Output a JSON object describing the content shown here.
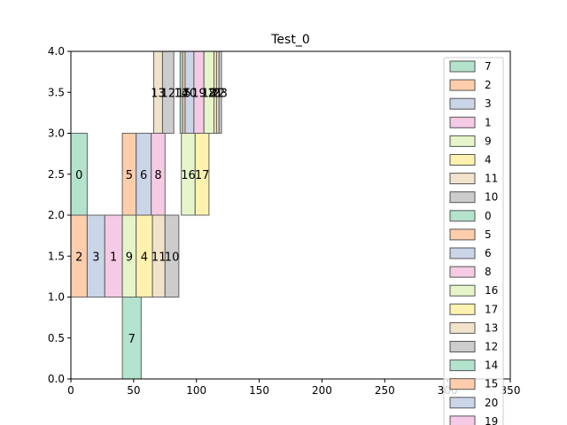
{
  "chart_data": {
    "type": "bar",
    "title": "Test_0",
    "xlabel": "",
    "ylabel": "",
    "xlim": [
      0,
      350
    ],
    "ylim": [
      0,
      4
    ],
    "xticks": [
      0,
      50,
      100,
      150,
      200,
      250,
      300,
      350
    ],
    "yticks": [
      0.0,
      0.5,
      1.0,
      1.5,
      2.0,
      2.5,
      3.0,
      3.5,
      4.0
    ],
    "xtick_labels": [
      "0",
      "50",
      "100",
      "150",
      "200",
      "250",
      "300",
      "350"
    ],
    "ytick_labels": [
      "0.0",
      "0.5",
      "1.0",
      "1.5",
      "2.0",
      "2.5",
      "3.0",
      "3.5",
      "4.0"
    ],
    "grid": false,
    "legend_position": "upper-right",
    "legend_entries": [
      "7",
      "2",
      "3",
      "1",
      "9",
      "4",
      "11",
      "10",
      "0",
      "5",
      "6",
      "8",
      "16",
      "17",
      "13",
      "12",
      "14",
      "15",
      "20",
      "19"
    ],
    "palette": [
      "#b3e2cd",
      "#fdcdac",
      "#cbd5e8",
      "#f4cae4",
      "#e6f5c9",
      "#fff2ae",
      "#f1e2cc",
      "#cccccc"
    ],
    "bars": [
      {
        "label": "7",
        "x0": 41,
        "width": 15,
        "y0": 0,
        "height": 1,
        "color": "#b3e2cd"
      },
      {
        "label": "2",
        "x0": 0,
        "width": 13,
        "y0": 1,
        "height": 1,
        "color": "#fdcdac"
      },
      {
        "label": "3",
        "x0": 13,
        "width": 14,
        "y0": 1,
        "height": 1,
        "color": "#cbd5e8"
      },
      {
        "label": "1",
        "x0": 27,
        "width": 14,
        "y0": 1,
        "height": 1,
        "color": "#f4cae4"
      },
      {
        "label": "9",
        "x0": 41,
        "width": 11,
        "y0": 1,
        "height": 1,
        "color": "#e6f5c9"
      },
      {
        "label": "4",
        "x0": 52,
        "width": 13,
        "y0": 1,
        "height": 1,
        "color": "#fff2ae"
      },
      {
        "label": "11",
        "x0": 65,
        "width": 10,
        "y0": 1,
        "height": 1,
        "color": "#f1e2cc"
      },
      {
        "label": "10",
        "x0": 75,
        "width": 11,
        "y0": 1,
        "height": 1,
        "color": "#cccccc"
      },
      {
        "label": "0",
        "x0": 0,
        "width": 13,
        "y0": 2,
        "height": 1,
        "color": "#b3e2cd"
      },
      {
        "label": "5",
        "x0": 41,
        "width": 11,
        "y0": 2,
        "height": 1,
        "color": "#fdcdac"
      },
      {
        "label": "6",
        "x0": 52,
        "width": 12,
        "y0": 2,
        "height": 1,
        "color": "#cbd5e8"
      },
      {
        "label": "8",
        "x0": 64,
        "width": 11,
        "y0": 2,
        "height": 1,
        "color": "#f4cae4"
      },
      {
        "label": "16",
        "x0": 88,
        "width": 11,
        "y0": 2,
        "height": 1,
        "color": "#e6f5c9"
      },
      {
        "label": "17",
        "x0": 99,
        "width": 11,
        "y0": 2,
        "height": 1,
        "color": "#fff2ae"
      },
      {
        "label": "13",
        "x0": 66,
        "width": 7,
        "y0": 3,
        "height": 1,
        "color": "#f1e2cc"
      },
      {
        "label": "12",
        "x0": 73,
        "width": 9,
        "y0": 3,
        "height": 1,
        "color": "#cccccc"
      },
      {
        "label": "14",
        "x0": 87,
        "width": 2,
        "y0": 3,
        "height": 1,
        "color": "#b3e2cd"
      },
      {
        "label": "15",
        "x0": 89,
        "width": 2,
        "y0": 3,
        "height": 1,
        "color": "#fdcdac"
      },
      {
        "label": "20",
        "x0": 91,
        "width": 7,
        "y0": 3,
        "height": 1,
        "color": "#cbd5e8"
      },
      {
        "label": "19",
        "x0": 98,
        "width": 8,
        "y0": 3,
        "height": 1,
        "color": "#f4cae4"
      },
      {
        "label": "18",
        "x0": 106,
        "width": 8,
        "y0": 3,
        "height": 1,
        "color": "#e6f5c9"
      },
      {
        "label": "21",
        "x0": 114,
        "width": 2,
        "y0": 3,
        "height": 1,
        "color": "#fff2ae"
      },
      {
        "label": "22",
        "x0": 116,
        "width": 2,
        "y0": 3,
        "height": 1,
        "color": "#f1e2cc"
      },
      {
        "label": "23",
        "x0": 118,
        "width": 2,
        "y0": 3,
        "height": 1,
        "color": "#cccccc"
      }
    ]
  }
}
